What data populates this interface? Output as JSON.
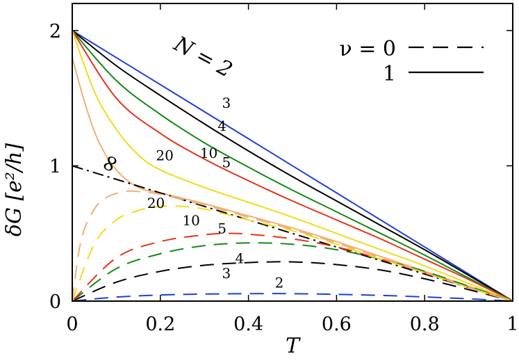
{
  "chart_data": {
    "type": "line",
    "title": "",
    "xlabel": "T",
    "ylabel": "δG [e²/h]",
    "xlim": [
      0,
      1
    ],
    "ylim": [
      0,
      2.2
    ],
    "x_ticks": [
      "0",
      "0.2",
      "0.4",
      "0.6",
      "0.8",
      "1"
    ],
    "y_ticks": [
      "0",
      "1",
      "2"
    ],
    "grid": false,
    "legend_position": "top-right",
    "legend": [
      {
        "label": "ν = 0",
        "style": "dashed"
      },
      {
        "label": "1",
        "style": "solid"
      }
    ],
    "colors": {
      "N2": "#1f3fd1",
      "N3": "#000000",
      "N4": "#138a13",
      "N5": "#e8321a",
      "N10": "#f2dc18",
      "N20": "#f2b070",
      "Ninf": "#000000"
    },
    "series": [
      {
        "name": "2",
        "nu": 1,
        "x": [
          0,
          0.2,
          0.4,
          0.6,
          0.8,
          1.0
        ],
        "y": [
          2.0,
          1.6,
          1.2,
          0.8,
          0.4,
          0.0
        ]
      },
      {
        "name": "3",
        "nu": 1,
        "x": [
          0,
          0.1,
          0.2,
          0.3,
          0.4,
          0.5,
          0.6,
          0.7,
          0.8,
          0.9,
          1.0
        ],
        "y": [
          2.0,
          1.74,
          1.52,
          1.31,
          1.11,
          0.92,
          0.74,
          0.56,
          0.38,
          0.19,
          0.0
        ]
      },
      {
        "name": "4",
        "nu": 1,
        "x": [
          0,
          0.1,
          0.2,
          0.3,
          0.4,
          0.5,
          0.6,
          0.7,
          0.8,
          0.9,
          1.0
        ],
        "y": [
          2.0,
          1.63,
          1.38,
          1.17,
          0.99,
          0.82,
          0.66,
          0.5,
          0.34,
          0.17,
          0.0
        ]
      },
      {
        "name": "5",
        "nu": 1,
        "x": [
          0,
          0.1,
          0.2,
          0.3,
          0.4,
          0.5,
          0.6,
          0.7,
          0.8,
          0.9,
          1.0
        ],
        "y": [
          2.0,
          1.5,
          1.24,
          1.05,
          0.89,
          0.74,
          0.6,
          0.46,
          0.31,
          0.16,
          0.0
        ]
      },
      {
        "name": "10",
        "nu": 1,
        "x": [
          0,
          0.05,
          0.1,
          0.15,
          0.2,
          0.3,
          0.4,
          0.5,
          0.6,
          0.7,
          0.8,
          0.9,
          1.0
        ],
        "y": [
          2.0,
          1.55,
          1.27,
          1.08,
          0.97,
          0.84,
          0.73,
          0.62,
          0.5,
          0.38,
          0.26,
          0.13,
          0.0
        ]
      },
      {
        "name": "20",
        "nu": 1,
        "x": [
          0,
          0.03,
          0.06,
          0.1,
          0.15,
          0.2,
          0.3,
          0.4,
          0.5,
          0.6,
          0.7,
          0.8,
          0.9,
          1.0
        ],
        "y": [
          1.8,
          1.45,
          1.18,
          0.97,
          0.84,
          0.8,
          0.72,
          0.63,
          0.54,
          0.44,
          0.33,
          0.22,
          0.11,
          0.0
        ]
      },
      {
        "name": "∞",
        "nu": null,
        "x": [
          0,
          0.2,
          0.4,
          0.6,
          0.8,
          1.0
        ],
        "y": [
          1.0,
          0.8,
          0.6,
          0.4,
          0.2,
          0.0
        ]
      },
      {
        "name": "2",
        "nu": 0,
        "x": [
          0,
          0.1,
          0.2,
          0.3,
          0.4,
          0.5,
          0.6,
          0.7,
          0.8,
          0.9,
          1.0
        ],
        "y": [
          0.0,
          0.03,
          0.045,
          0.052,
          0.055,
          0.055,
          0.05,
          0.042,
          0.031,
          0.017,
          0.0
        ]
      },
      {
        "name": "3",
        "nu": 0,
        "x": [
          0,
          0.1,
          0.2,
          0.3,
          0.4,
          0.5,
          0.6,
          0.7,
          0.8,
          0.9,
          1.0
        ],
        "y": [
          0.0,
          0.14,
          0.22,
          0.265,
          0.285,
          0.29,
          0.27,
          0.23,
          0.165,
          0.085,
          0.0
        ]
      },
      {
        "name": "4",
        "nu": 0,
        "x": [
          0,
          0.1,
          0.2,
          0.3,
          0.4,
          0.5,
          0.6,
          0.7,
          0.8,
          0.9,
          1.0
        ],
        "y": [
          0.0,
          0.24,
          0.35,
          0.41,
          0.43,
          0.42,
          0.38,
          0.31,
          0.22,
          0.11,
          0.0
        ]
      },
      {
        "name": "5",
        "nu": 0,
        "x": [
          0,
          0.1,
          0.2,
          0.3,
          0.35,
          0.4,
          0.5,
          0.6,
          0.7,
          0.8,
          0.9,
          1.0
        ],
        "y": [
          0.0,
          0.32,
          0.44,
          0.49,
          0.5,
          0.495,
          0.46,
          0.4,
          0.31,
          0.21,
          0.1,
          0.0
        ]
      },
      {
        "name": "10",
        "nu": 0,
        "x": [
          0,
          0.05,
          0.1,
          0.15,
          0.2,
          0.25,
          0.3,
          0.4,
          0.5,
          0.6,
          0.7,
          0.8,
          0.9,
          1.0
        ],
        "y": [
          0.0,
          0.42,
          0.6,
          0.67,
          0.7,
          0.7,
          0.68,
          0.6,
          0.52,
          0.42,
          0.31,
          0.21,
          0.1,
          0.0
        ]
      },
      {
        "name": "20",
        "nu": 0,
        "x": [
          0,
          0.02,
          0.05,
          0.08,
          0.12,
          0.15,
          0.2,
          0.3,
          0.4,
          0.5,
          0.6,
          0.7,
          0.8,
          0.9,
          1.0
        ],
        "y": [
          0.0,
          0.45,
          0.68,
          0.77,
          0.81,
          0.81,
          0.79,
          0.71,
          0.62,
          0.53,
          0.43,
          0.32,
          0.21,
          0.1,
          0.0
        ]
      }
    ],
    "annotations": [
      {
        "text": "N = 2",
        "x": 0.29,
        "y": 1.76
      },
      {
        "text": "3",
        "x": 0.35,
        "y": 1.43
      },
      {
        "text": "4",
        "x": 0.34,
        "y": 1.26
      },
      {
        "text": "5",
        "x": 0.35,
        "y": 0.99
      },
      {
        "text": "10",
        "x": 0.31,
        "y": 1.06
      },
      {
        "text": "20",
        "x": 0.21,
        "y": 1.04
      },
      {
        "text": "∞",
        "x": 0.1,
        "y": 0.99
      },
      {
        "text": "20",
        "x": 0.19,
        "y": 0.69
      },
      {
        "text": "10",
        "x": 0.27,
        "y": 0.56
      },
      {
        "text": "5",
        "x": 0.34,
        "y": 0.5
      },
      {
        "text": "4",
        "x": 0.38,
        "y": 0.28
      },
      {
        "text": "3",
        "x": 0.35,
        "y": 0.17
      },
      {
        "text": "2",
        "x": 0.47,
        "y": 0.1
      }
    ]
  }
}
